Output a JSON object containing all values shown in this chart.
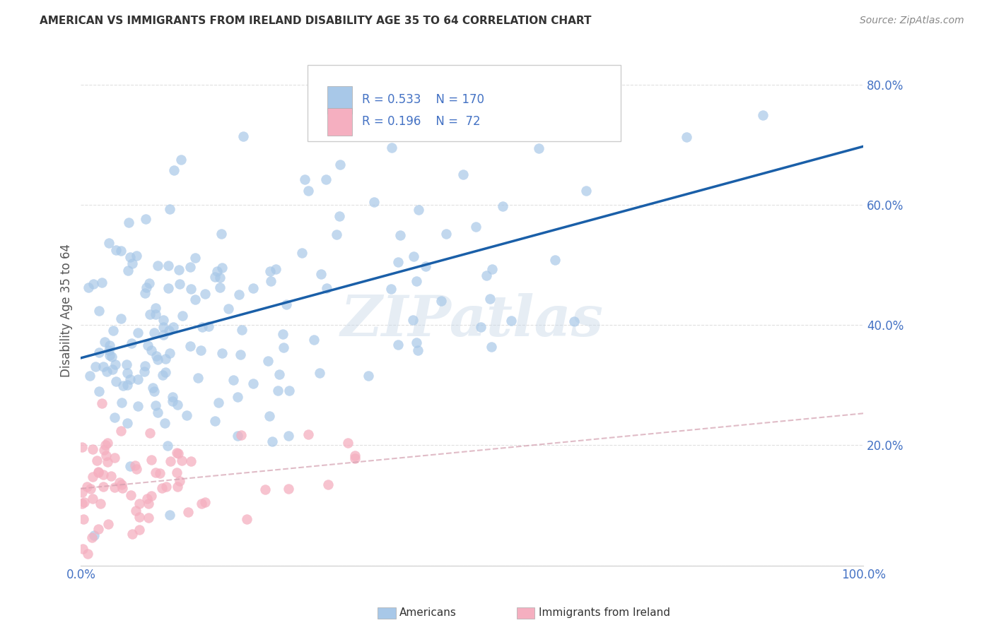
{
  "title": "AMERICAN VS IMMIGRANTS FROM IRELAND DISABILITY AGE 35 TO 64 CORRELATION CHART",
  "source": "Source: ZipAtlas.com",
  "ylabel": "Disability Age 35 to 64",
  "xlim": [
    0.0,
    1.0
  ],
  "ylim": [
    0.0,
    0.85
  ],
  "americans_color": "#a8c8e8",
  "americans_edge_color": "#a8c8e8",
  "americans_line_color": "#1a5fa8",
  "ireland_color": "#f5afc0",
  "ireland_edge_color": "#f5afc0",
  "ireland_line_color": "#e8b0bf",
  "americans_R": 0.533,
  "americans_N": 170,
  "ireland_R": 0.196,
  "ireland_N": 72,
  "legend_label_americans": "Americans",
  "legend_label_ireland": "Immigrants from Ireland",
  "watermark": "ZIPatlas",
  "background_color": "#ffffff",
  "grid_color": "#dddddd",
  "label_color": "#4472C4",
  "tick_color": "#4472C4",
  "title_color": "#333333",
  "source_color": "#888888",
  "americans_seed": 42,
  "ireland_seed": 7
}
